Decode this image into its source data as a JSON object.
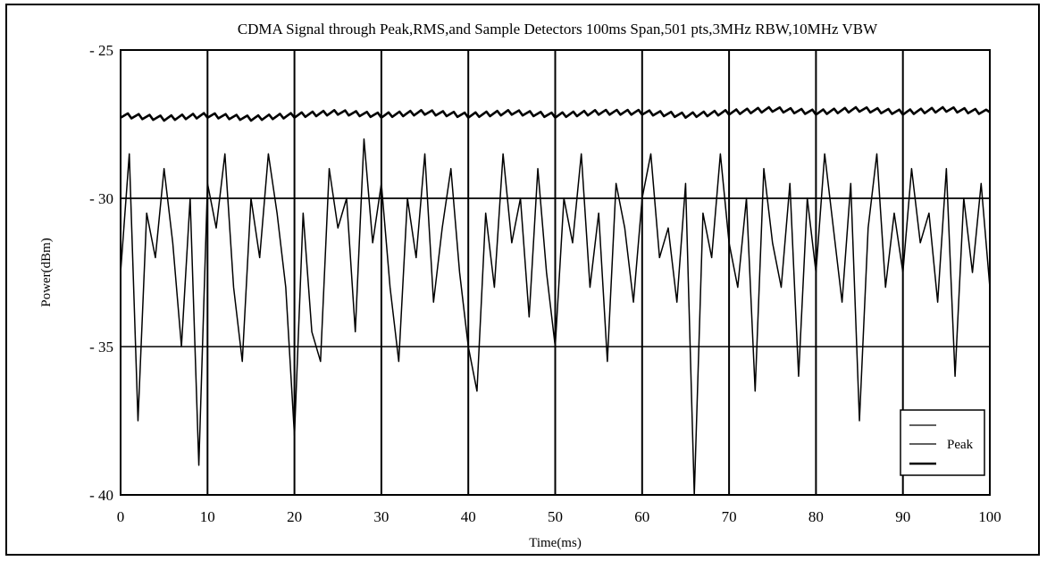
{
  "chart_data": {
    "type": "line",
    "title": "CDMA Signal through Peak,RMS,and Sample Detectors 100ms Span,501 pts,3MHz RBW,10MHz VBW",
    "xlabel": "Time(ms)",
    "ylabel": "Power(dBm)",
    "xlim": [
      0,
      100
    ],
    "ylim": [
      -40,
      -25
    ],
    "x_ticks": [
      0,
      10,
      20,
      30,
      40,
      50,
      60,
      70,
      80,
      90,
      100
    ],
    "y_ticks": [
      -25,
      -30,
      -35,
      -40
    ],
    "y_tick_labels": [
      "- 25",
      "- 30",
      "- 35",
      "- 40"
    ],
    "grid": true,
    "legend_position": "bottom-right",
    "series": [
      {
        "key": "peak_detector",
        "name": "",
        "level_dbm": -27.2,
        "x": [
          0,
          5,
          10,
          15,
          20,
          25,
          30,
          35,
          40,
          45,
          50,
          55,
          60,
          65,
          70,
          75,
          80,
          85,
          90,
          95,
          100
        ],
        "values": [
          -27.2,
          -27.3,
          -27.2,
          -27.3,
          -27.2,
          -27.1,
          -27.2,
          -27.1,
          -27.2,
          -27.1,
          -27.2,
          -27.1,
          -27.1,
          -27.2,
          -27.1,
          -27.0,
          -27.1,
          -27.0,
          -27.1,
          -27.0,
          -27.1
        ]
      },
      {
        "key": "rms_detector",
        "name": "Peak",
        "level_dbm": -30.0,
        "x": [
          0,
          100
        ],
        "values": [
          -30.0,
          -30.0
        ]
      },
      {
        "key": "sample_detector",
        "name": "",
        "x": [
          0,
          1,
          2,
          3,
          4,
          5,
          6,
          7,
          8,
          9,
          10,
          11,
          12,
          13,
          14,
          15,
          16,
          17,
          18,
          19,
          20,
          21,
          22,
          23,
          24,
          25,
          26,
          27,
          28,
          29,
          30,
          31,
          32,
          33,
          34,
          35,
          36,
          37,
          38,
          39,
          40,
          41,
          42,
          43,
          44,
          45,
          46,
          47,
          48,
          49,
          50,
          51,
          52,
          53,
          54,
          55,
          56,
          57,
          58,
          59,
          60,
          61,
          62,
          63,
          64,
          65,
          66,
          67,
          68,
          69,
          70,
          71,
          72,
          73,
          74,
          75,
          76,
          77,
          78,
          79,
          80,
          81,
          82,
          83,
          84,
          85,
          86,
          87,
          88,
          89,
          90,
          91,
          92,
          93,
          94,
          95,
          96,
          97,
          98,
          99,
          100
        ],
        "values": [
          -32.5,
          -28.5,
          -37.5,
          -30.5,
          -32.0,
          -29.0,
          -31.5,
          -35.0,
          -30.0,
          -39.0,
          -29.5,
          -31.0,
          -28.5,
          -33.0,
          -35.5,
          -30.0,
          -32.0,
          -28.5,
          -30.5,
          -33.0,
          -38.0,
          -30.5,
          -34.5,
          -35.5,
          -29.0,
          -31.0,
          -30.0,
          -34.5,
          -28.0,
          -31.5,
          -29.5,
          -33.0,
          -35.5,
          -30.0,
          -32.0,
          -28.5,
          -33.5,
          -31.0,
          -29.0,
          -32.5,
          -35.0,
          -36.5,
          -30.5,
          -33.0,
          -28.5,
          -31.5,
          -30.0,
          -34.0,
          -29.0,
          -32.5,
          -35.0,
          -30.0,
          -31.5,
          -28.5,
          -33.0,
          -30.5,
          -35.5,
          -29.5,
          -31.0,
          -33.5,
          -30.0,
          -28.5,
          -32.0,
          -31.0,
          -33.5,
          -29.5,
          -40.0,
          -30.5,
          -32.0,
          -28.5,
          -31.5,
          -33.0,
          -30.0,
          -36.5,
          -29.0,
          -31.5,
          -33.0,
          -29.5,
          -36.0,
          -30.0,
          -32.5,
          -28.5,
          -31.0,
          -33.5,
          -29.5,
          -37.5,
          -31.0,
          -28.5,
          -33.0,
          -30.5,
          -32.5,
          -29.0,
          -31.5,
          -30.5,
          -33.5,
          -29.0,
          -36.0,
          -30.0,
          -32.5,
          -29.5,
          -33.0
        ]
      }
    ]
  },
  "colors": {
    "background": "#ffffff",
    "ink": "#000000"
  }
}
